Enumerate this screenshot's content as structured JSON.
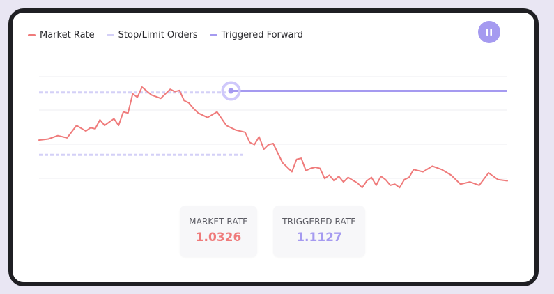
{
  "legend": {
    "items": [
      {
        "label": "Market Rate",
        "color": "#ef7b7b"
      },
      {
        "label": "Stop/Limit Orders",
        "color": "#d4d0f7"
      },
      {
        "label": "Triggered Forward",
        "color": "#a59af0"
      }
    ]
  },
  "controls": {
    "pause_icon": "pause-icon"
  },
  "stats": {
    "market": {
      "label": "MARKET RATE",
      "value": "1.0326",
      "color": "#ef7b7b"
    },
    "triggered": {
      "label": "TRIGGERED RATE",
      "value": "1.1127",
      "color": "#a59af0"
    }
  },
  "chart_data": {
    "type": "line",
    "grid": true,
    "legend_position": "top-left",
    "ylim": [
      0,
      100
    ],
    "series": [
      {
        "name": "Market Rate",
        "color": "#ef7b7b",
        "x": [
          0,
          2,
          4,
          6,
          8,
          10,
          11,
          12,
          13,
          14,
          15,
          16,
          17,
          18,
          19,
          20,
          21,
          22,
          24,
          26,
          28,
          29,
          30,
          31,
          32,
          33,
          34,
          36,
          38,
          40,
          42,
          44,
          45,
          46,
          47,
          48,
          49,
          50,
          52,
          54,
          55,
          56,
          57,
          58,
          59,
          60,
          61,
          62,
          63,
          64,
          65,
          66,
          68,
          69,
          70,
          71,
          72,
          73,
          74,
          75,
          76,
          77,
          78,
          79,
          80,
          82,
          84,
          86,
          88,
          90,
          92,
          94,
          96,
          98,
          100
        ],
        "values": [
          53,
          54,
          57,
          55,
          66,
          61,
          64,
          63,
          71,
          66,
          69,
          72,
          66,
          78,
          77,
          94,
          91,
          100,
          93,
          90,
          98,
          96,
          97,
          88,
          86,
          81,
          77,
          73,
          78,
          66,
          62,
          60,
          51,
          49,
          56,
          45,
          49,
          50,
          33,
          25,
          36,
          37,
          26,
          28,
          29,
          28,
          19,
          22,
          17,
          21,
          16,
          20,
          15,
          11,
          17,
          20,
          13,
          21,
          18,
          13,
          14,
          11,
          18,
          20,
          27,
          25,
          30,
          27,
          22,
          14,
          16,
          13,
          24,
          18,
          17
        ]
      },
      {
        "name": "Stop/Limit Orders",
        "color": "#d4d0f7",
        "levels": [
          [
            0,
            95.2,
            41
          ],
          [
            0,
            40,
            44
          ]
        ]
      },
      {
        "name": "Triggered Forward",
        "color": "#a59af0",
        "start_x": 41,
        "end_x": 100,
        "value": 96.6
      }
    ]
  }
}
